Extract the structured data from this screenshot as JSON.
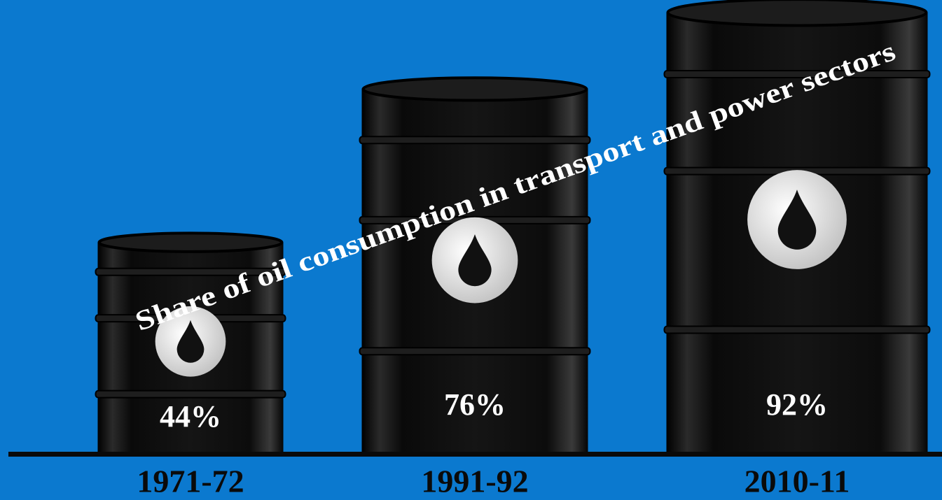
{
  "chart_data": {
    "type": "bar",
    "title": "Share of oil consumption in transport and power sectors",
    "categories": [
      "1971-72",
      "1991-92",
      "2010-11"
    ],
    "values": [
      44,
      76,
      92
    ],
    "value_labels": [
      "44%",
      "76%",
      "92%"
    ],
    "color": "#111111"
  }
}
